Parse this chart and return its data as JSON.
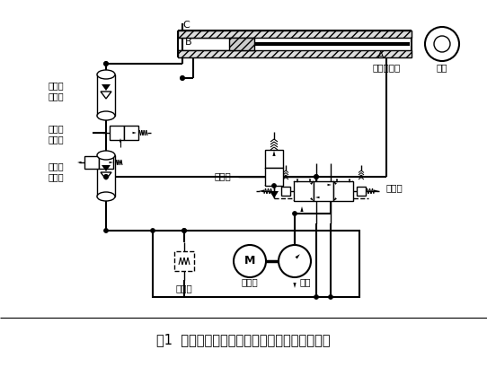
{
  "title": "图1  船舶起重机半主动升沉补偿液压系统原理图",
  "bg_color": "#ffffff",
  "line_color": "#000000",
  "labels": {
    "passive_accumulator": "被动腔\n蓄能器",
    "passive_charge_valve": "被动腔\n充液阀",
    "main_line_accumulator": "主油路\n蓄能器",
    "connect_valve": "连通阀",
    "safety_valve": "安全阀",
    "motor_label": "电动机",
    "main_pump": "主泵",
    "proportional_valve": "比例阀",
    "pulley": "滑轮",
    "compensate_cylinder": "补偿液压缸",
    "M": "M",
    "A": "A",
    "B": "B",
    "C": "C"
  }
}
